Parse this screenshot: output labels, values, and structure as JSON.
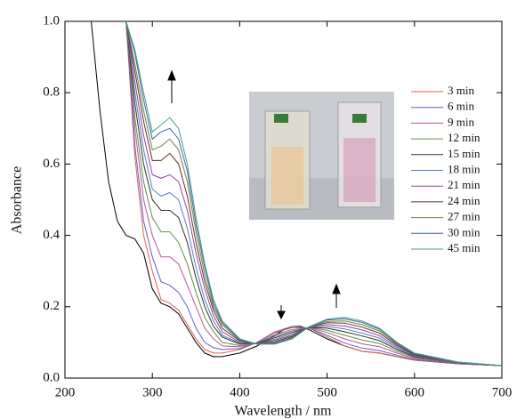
{
  "chart_data": {
    "type": "line",
    "x_label": "Wavelength / nm",
    "y_label": "Absorbance",
    "xlim": [
      200,
      700
    ],
    "xticks": [
      200,
      300,
      400,
      500,
      600,
      700
    ],
    "ylim": [
      0,
      1
    ],
    "yticks": [
      {
        "value": 0,
        "label": "0.0"
      },
      0.2,
      0.4,
      0.6,
      0.8,
      {
        "value": 1,
        "label": "1.0"
      }
    ],
    "x": [
      270,
      280,
      290,
      300,
      310,
      320,
      330,
      340,
      350,
      360,
      370,
      380,
      400,
      420,
      440,
      460,
      480,
      500,
      520,
      540,
      560,
      580,
      600,
      650,
      700
    ],
    "series": [
      {
        "color": "#000000",
        "x": [
          230,
          240,
          250,
          260,
          270,
          280,
          290,
          300,
          310,
          320,
          330,
          340,
          350,
          360,
          370,
          380,
          400,
          420,
          440,
          450,
          460,
          470,
          480,
          500,
          520,
          540,
          560,
          580,
          600,
          650,
          700
        ],
        "values": [
          1.0,
          0.75,
          0.55,
          0.44,
          0.4,
          0.39,
          0.35,
          0.25,
          0.21,
          0.2,
          0.18,
          0.14,
          0.1,
          0.07,
          0.06,
          0.06,
          0.07,
          0.09,
          0.12,
          0.135,
          0.145,
          0.145,
          0.135,
          0.11,
          0.09,
          0.075,
          0.07,
          0.06,
          0.05,
          0.04,
          0.035
        ]
      },
      {
        "name": "3 min",
        "color": "#e06050",
        "values": [
          1.0,
          0.62,
          0.4,
          0.3,
          0.22,
          0.21,
          0.19,
          0.15,
          0.11,
          0.08,
          0.07,
          0.07,
          0.08,
          0.1,
          0.13,
          0.145,
          0.14,
          0.115,
          0.09,
          0.075,
          0.07,
          0.06,
          0.05,
          0.04,
          0.035
        ]
      },
      {
        "name": "6 min",
        "color": "#6060c0",
        "values": [
          1.0,
          0.65,
          0.44,
          0.34,
          0.27,
          0.26,
          0.24,
          0.2,
          0.14,
          0.1,
          0.085,
          0.08,
          0.083,
          0.1,
          0.127,
          0.142,
          0.14,
          0.12,
          0.098,
          0.084,
          0.077,
          0.064,
          0.052,
          0.04,
          0.035
        ]
      },
      {
        "name": "9 min",
        "color": "#c050a0",
        "values": [
          1.0,
          0.7,
          0.5,
          0.4,
          0.34,
          0.34,
          0.32,
          0.26,
          0.2,
          0.14,
          0.11,
          0.09,
          0.088,
          0.099,
          0.121,
          0.136,
          0.141,
          0.128,
          0.11,
          0.096,
          0.088,
          0.07,
          0.055,
          0.041,
          0.035
        ]
      },
      {
        "name": "12 min",
        "color": "#609040",
        "values": [
          1.0,
          0.73,
          0.55,
          0.45,
          0.41,
          0.41,
          0.38,
          0.32,
          0.24,
          0.17,
          0.13,
          0.1,
          0.091,
          0.098,
          0.117,
          0.132,
          0.142,
          0.134,
          0.12,
          0.107,
          0.097,
          0.075,
          0.058,
          0.042,
          0.035
        ]
      },
      {
        "name": "15 min",
        "color": "#303030",
        "values": [
          1.0,
          0.77,
          0.6,
          0.5,
          0.47,
          0.47,
          0.45,
          0.38,
          0.28,
          0.2,
          0.145,
          0.115,
          0.095,
          0.098,
          0.113,
          0.128,
          0.142,
          0.14,
          0.13,
          0.118,
          0.105,
          0.08,
          0.06,
          0.043,
          0.035
        ]
      },
      {
        "name": "18 min",
        "color": "#5080c0",
        "values": [
          1.0,
          0.8,
          0.64,
          0.53,
          0.51,
          0.52,
          0.5,
          0.42,
          0.31,
          0.22,
          0.16,
          0.12,
          0.098,
          0.097,
          0.109,
          0.124,
          0.143,
          0.145,
          0.138,
          0.126,
          0.112,
          0.084,
          0.062,
          0.043,
          0.035
        ]
      },
      {
        "name": "21 min",
        "color": "#9040a0",
        "values": [
          1.0,
          0.83,
          0.68,
          0.57,
          0.56,
          0.57,
          0.55,
          0.47,
          0.35,
          0.25,
          0.175,
          0.13,
          0.1,
          0.097,
          0.106,
          0.12,
          0.144,
          0.15,
          0.146,
          0.135,
          0.119,
          0.088,
          0.064,
          0.044,
          0.035
        ]
      },
      {
        "name": "24 min",
        "color": "#603020",
        "values": [
          1.0,
          0.86,
          0.72,
          0.61,
          0.61,
          0.63,
          0.6,
          0.51,
          0.38,
          0.27,
          0.19,
          0.14,
          0.104,
          0.096,
          0.102,
          0.117,
          0.144,
          0.155,
          0.154,
          0.143,
          0.126,
          0.092,
          0.066,
          0.044,
          0.035
        ]
      },
      {
        "name": "27 min",
        "color": "#708040",
        "values": [
          1.0,
          0.88,
          0.75,
          0.64,
          0.65,
          0.67,
          0.64,
          0.55,
          0.41,
          0.29,
          0.2,
          0.15,
          0.106,
          0.096,
          0.099,
          0.114,
          0.144,
          0.159,
          0.16,
          0.15,
          0.132,
          0.095,
          0.068,
          0.044,
          0.035
        ]
      },
      {
        "name": "30 min",
        "color": "#4060a0",
        "values": [
          1.0,
          0.91,
          0.78,
          0.67,
          0.69,
          0.7,
          0.67,
          0.58,
          0.43,
          0.31,
          0.21,
          0.155,
          0.108,
          0.095,
          0.097,
          0.112,
          0.145,
          0.163,
          0.166,
          0.156,
          0.137,
          0.098,
          0.069,
          0.045,
          0.035
        ]
      },
      {
        "name": "45 min",
        "color": "#40a090",
        "values": [
          1.0,
          0.92,
          0.8,
          0.69,
          0.71,
          0.73,
          0.7,
          0.6,
          0.45,
          0.32,
          0.22,
          0.16,
          0.11,
          0.095,
          0.095,
          0.11,
          0.145,
          0.165,
          0.17,
          0.16,
          0.14,
          0.1,
          0.07,
          0.045,
          0.035
        ]
      }
    ]
  }
}
